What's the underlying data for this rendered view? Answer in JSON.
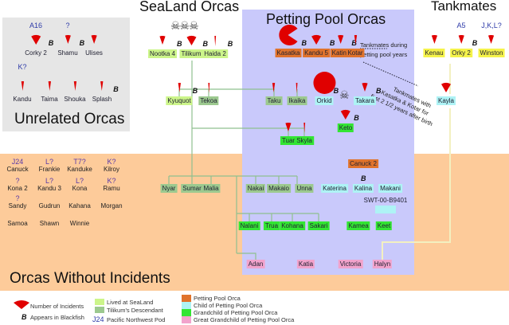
{
  "titles": {
    "sealand": "SeaLand Orcas",
    "pool": "Petting Pool Orcas",
    "tankmates": "Tankmates",
    "unrelated": "Unrelated Orcas",
    "no_incidents": "Orcas Without Incidents"
  },
  "colors": {
    "sealand": "#ccf58a",
    "tilikum": "#9cc98f",
    "petting": "#e0732c",
    "child": "#aef3f5",
    "grandchild": "#33e533",
    "greatgrand": "#f2a3cc",
    "tankmate": "#f5f34a",
    "incident": "#e00000",
    "pod": "#2d3aa8"
  },
  "orcas": [
    {
      "name": "Corky 2",
      "cat": "none",
      "pod": "A16",
      "blackfish": true,
      "icon": "wide"
    },
    {
      "name": "Shamu",
      "cat": "none",
      "pod": "?",
      "blackfish": true,
      "icon": "medium"
    },
    {
      "name": "Ulises",
      "cat": "none",
      "pod": "",
      "blackfish": false,
      "icon": "medium"
    },
    {
      "name": "Kandu",
      "cat": "none",
      "pod": "K?",
      "blackfish": false,
      "icon": "narrow"
    },
    {
      "name": "Taima",
      "cat": "none",
      "pod": "",
      "blackfish": false,
      "icon": "narrow"
    },
    {
      "name": "Shouka",
      "cat": "none",
      "pod": "",
      "blackfish": false,
      "icon": "narrow"
    },
    {
      "name": "Splash",
      "cat": "none",
      "pod": "",
      "blackfish": true,
      "icon": "narrow"
    },
    {
      "name": "Nootka 4",
      "cat": "sealand",
      "pod": "",
      "blackfish": true,
      "icon": "medium"
    },
    {
      "name": "Tilikum",
      "cat": "sealand",
      "pod": "",
      "blackfish": true,
      "icon": "wide"
    },
    {
      "name": "Haida 2",
      "cat": "sealand",
      "pod": "",
      "blackfish": true,
      "icon": "sliver"
    },
    {
      "name": "Kyuquot",
      "cat": "sealand",
      "pod": "",
      "blackfish": true,
      "icon": "narrow"
    },
    {
      "name": "Tekoa",
      "cat": "tilikum",
      "pod": "",
      "blackfish": false,
      "icon": "sliver"
    },
    {
      "name": "Kasatka",
      "cat": "petting",
      "pod": "",
      "blackfish": true,
      "icon": "pacman"
    },
    {
      "name": "Kandu 5",
      "cat": "petting",
      "pod": "",
      "blackfish": true,
      "icon": "wide"
    },
    {
      "name": "Katina",
      "cat": "petting",
      "pod": "",
      "blackfish": true,
      "icon": "medium"
    },
    {
      "name": "Kotar",
      "cat": "petting",
      "pod": "",
      "blackfish": false,
      "icon": "narrow"
    },
    {
      "name": "Taku",
      "cat": "tilikum",
      "pod": "",
      "blackfish": false,
      "icon": "narrow"
    },
    {
      "name": "Ikaika",
      "cat": "tilikum",
      "pod": "",
      "blackfish": false,
      "icon": "sliver"
    },
    {
      "name": "Orkid",
      "cat": "child",
      "pod": "",
      "blackfish": true,
      "icon": "circle"
    },
    {
      "name": "Takara",
      "cat": "child",
      "pod": "",
      "blackfish": true,
      "icon": "medium"
    },
    {
      "name": "Keto",
      "cat": "grandchild",
      "pod": "",
      "blackfish": true,
      "icon": "wide"
    },
    {
      "name": "Tuar",
      "cat": "grandchild",
      "pod": "",
      "blackfish": false,
      "icon": "medium"
    },
    {
      "name": "Skyla",
      "cat": "grandchild",
      "pod": "",
      "blackfish": false,
      "icon": "sliver"
    },
    {
      "name": "Kenau",
      "cat": "tankmate",
      "pod": "",
      "blackfish": false,
      "icon": "medium"
    },
    {
      "name": "Orky 2",
      "cat": "tankmate",
      "pod": "A5",
      "blackfish": true,
      "icon": "medium"
    },
    {
      "name": "Winston",
      "cat": "tankmate",
      "pod": "J,K,L?",
      "blackfish": false,
      "icon": "medium"
    },
    {
      "name": "Kayla",
      "cat": "child",
      "pod": "",
      "blackfish": false,
      "icon": "wide"
    },
    {
      "name": "Canuck 2",
      "cat": "petting",
      "pod": "",
      "blackfish": false,
      "icon": ""
    },
    {
      "name": "Nyar",
      "cat": "tilikum",
      "pod": "",
      "blackfish": false,
      "icon": ""
    },
    {
      "name": "Sumar",
      "cat": "tilikum",
      "pod": "",
      "blackfish": false,
      "icon": ""
    },
    {
      "name": "Malia",
      "cat": "tilikum",
      "pod": "",
      "blackfish": false,
      "icon": ""
    },
    {
      "name": "Nakai",
      "cat": "tilikum",
      "pod": "",
      "blackfish": false,
      "icon": ""
    },
    {
      "name": "Makaio",
      "cat": "tilikum",
      "pod": "",
      "blackfish": false,
      "icon": ""
    },
    {
      "name": "Unna",
      "cat": "tilikum",
      "pod": "",
      "blackfish": false,
      "icon": ""
    },
    {
      "name": "Katerina",
      "cat": "child",
      "pod": "",
      "blackfish": false,
      "icon": ""
    },
    {
      "name": "Kalina",
      "cat": "child",
      "pod": "",
      "blackfish": true,
      "icon": ""
    },
    {
      "name": "Makani",
      "cat": "child",
      "pod": "",
      "blackfish": false,
      "icon": ""
    },
    {
      "name": "Nalani",
      "cat": "grandchild",
      "pod": "",
      "blackfish": false,
      "icon": ""
    },
    {
      "name": "Trua",
      "cat": "grandchild",
      "pod": "",
      "blackfish": false,
      "icon": ""
    },
    {
      "name": "Kohana",
      "cat": "grandchild",
      "pod": "",
      "blackfish": false,
      "icon": ""
    },
    {
      "name": "Sakari",
      "cat": "grandchild",
      "pod": "",
      "blackfish": false,
      "icon": ""
    },
    {
      "name": "Kamea",
      "cat": "grandchild",
      "pod": "",
      "blackfish": false,
      "icon": ""
    },
    {
      "name": "Keet",
      "cat": "grandchild",
      "pod": "",
      "blackfish": false,
      "icon": ""
    },
    {
      "name": "Adan",
      "cat": "greatgrand",
      "pod": "",
      "blackfish": false,
      "icon": ""
    },
    {
      "name": "Katia",
      "cat": "greatgrand",
      "pod": "",
      "blackfish": false,
      "icon": ""
    },
    {
      "name": "Victoria",
      "cat": "greatgrand",
      "pod": "",
      "blackfish": false,
      "icon": ""
    },
    {
      "name": "Halyn",
      "cat": "greatgrand",
      "pod": "",
      "blackfish": false,
      "icon": ""
    },
    {
      "name": "SWT-00-B9401",
      "cat": "none",
      "pod": "",
      "blackfish": false,
      "icon": ""
    },
    {
      "name": "",
      "cat": "child",
      "pod": "",
      "blackfish": false,
      "icon": ""
    }
  ],
  "no_incident_orcas": [
    {
      "name": "Canuck",
      "pod": "J24"
    },
    {
      "name": "Frankie",
      "pod": "L?"
    },
    {
      "name": "Kanduke",
      "pod": "T7?"
    },
    {
      "name": "Kilroy",
      "pod": "K?"
    },
    {
      "name": "Kona 2",
      "pod": "?"
    },
    {
      "name": "Kandu 3",
      "pod": "L?"
    },
    {
      "name": "Kona",
      "pod": "L?"
    },
    {
      "name": "Ramu",
      "pod": "K?"
    },
    {
      "name": "Sandy",
      "pod": "?"
    },
    {
      "name": "Gudrun",
      "pod": ""
    },
    {
      "name": "Kahana",
      "pod": ""
    },
    {
      "name": "Morgan",
      "pod": ""
    },
    {
      "name": "Samoa",
      "pod": ""
    },
    {
      "name": "Shawn",
      "pod": ""
    },
    {
      "name": "Winnie",
      "pod": ""
    }
  ],
  "notes": {
    "tank_pool_1": "Tankmates during",
    "tank_pool_2": "petting pool years",
    "kayla_1": "Tankmates with",
    "kayla_2": "Kasatka & Kotar for",
    "kayla_3": "first 2 1/2 years after birth"
  },
  "legend": {
    "incidents": "Number of Incidents",
    "blackfish_mark": "B",
    "blackfish": "Appears in Blackfish",
    "sealand": "Lived at SeaLand",
    "tilikum": "Tilikum's Descendant",
    "pod_example": "J24",
    "pod": "Pacific Northwest Pod",
    "petting": "Petting Pool Orca",
    "child": "Child of Petting Pool Orca",
    "grandchild": "Grandchild of Petting Pool Orca",
    "greatgrand": "Great Grandchild of Petting Pool Orca"
  }
}
